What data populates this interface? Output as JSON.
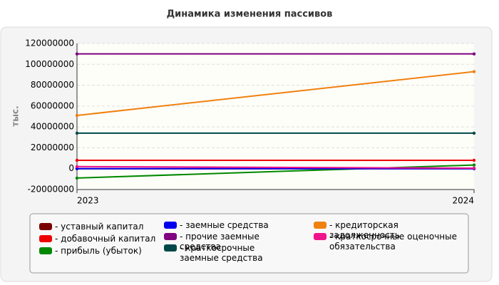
{
  "chart_data": {
    "type": "line",
    "title": "Динамика изменения пассивов",
    "y_label": "тыс.",
    "categories": [
      "2023",
      "2024"
    ],
    "ylim": [
      -20000000,
      120000000
    ],
    "yticks": [
      -20000000,
      0,
      20000000,
      40000000,
      60000000,
      80000000,
      100000000,
      120000000
    ],
    "grid": true,
    "series": [
      {
        "name": "- уставный капитал",
        "color": "#7a0000",
        "values": [
          0,
          0
        ]
      },
      {
        "name": "- добавочный капитал",
        "color": "#ee0000",
        "values": [
          8000000,
          8000000
        ]
      },
      {
        "name": "- прибыль (убыток)",
        "color": "#008800",
        "values": [
          -9000000,
          3500000
        ]
      },
      {
        "name": "- заемные средства",
        "color": "#0000ee",
        "values": [
          0,
          0
        ]
      },
      {
        "name": "- прочие заемные средства",
        "color": "#800080",
        "values": [
          110000000,
          110000000
        ]
      },
      {
        "name": "- краткосрочные заемные средства",
        "color": "#004848",
        "values": [
          34000000,
          34000000
        ]
      },
      {
        "name": "- кредиторская задолженность",
        "color": "#f08010",
        "values": [
          51000000,
          93000000
        ]
      },
      {
        "name": "- краткосрочные оценочные обязательства",
        "color": "#f0148c",
        "values": [
          2000000,
          500000
        ]
      }
    ]
  }
}
